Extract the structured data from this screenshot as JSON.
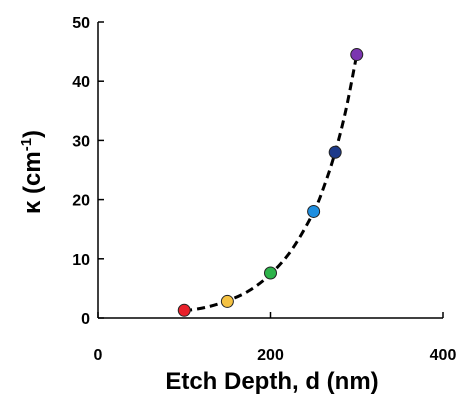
{
  "chart_data": {
    "type": "scatter",
    "title": "",
    "xlabel": "Etch Depth, d (nm)",
    "ylabel": {
      "symbol": "κ",
      "open": " (cm",
      "sup": "-1",
      "close": ")"
    },
    "xlim": [
      0,
      400
    ],
    "ylim": [
      0,
      50
    ],
    "xticks": [
      "0",
      "200",
      "400"
    ],
    "xtick_values": [
      0,
      200,
      400
    ],
    "yticks": [
      "0",
      "10",
      "20",
      "30",
      "40",
      "50"
    ],
    "ytick_values": [
      0,
      10,
      20,
      30,
      40,
      50
    ],
    "grid": false,
    "legend": "none",
    "points": [
      {
        "x": 100,
        "y": 1.3,
        "color": "#e8202a"
      },
      {
        "x": 150,
        "y": 2.8,
        "color": "#f5c242"
      },
      {
        "x": 200,
        "y": 7.6,
        "color": "#2db34a"
      },
      {
        "x": 250,
        "y": 18.0,
        "color": "#1f8fe0"
      },
      {
        "x": 275,
        "y": 28.0,
        "color": "#1d3a8a"
      },
      {
        "x": 300,
        "y": 44.5,
        "color": "#7b35b0"
      }
    ],
    "fit_line": {
      "style": "dashed",
      "color": "#000000",
      "x": [
        100,
        125,
        150,
        175,
        200,
        225,
        250,
        262.5,
        275,
        287.5,
        300
      ],
      "y": [
        1.2,
        1.8,
        2.9,
        4.6,
        7.4,
        11.6,
        17.9,
        22.4,
        28.0,
        35.2,
        44.5
      ]
    }
  }
}
